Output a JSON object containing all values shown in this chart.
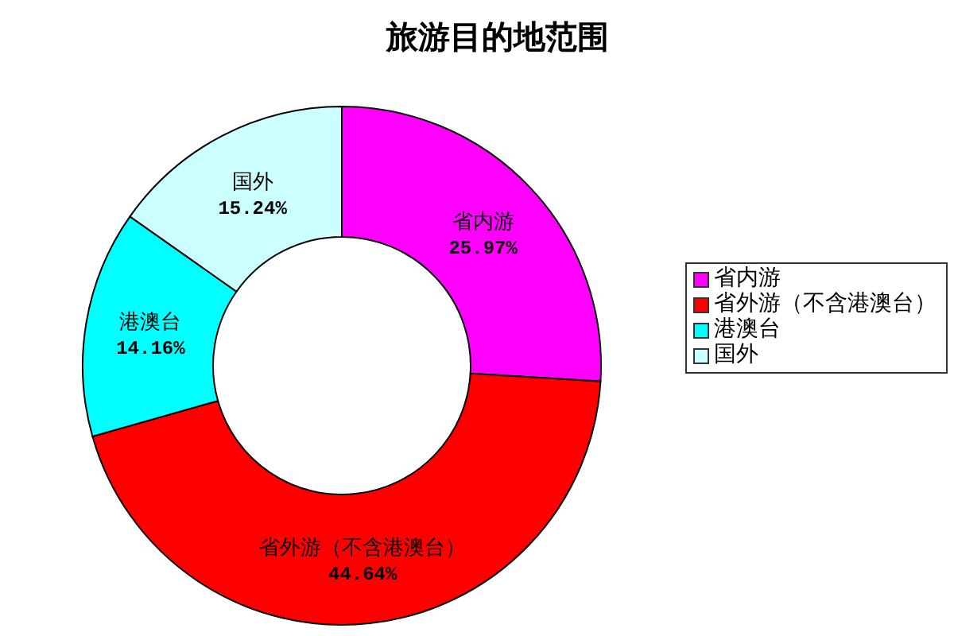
{
  "chart_data": {
    "type": "donut",
    "title": "旅游目的地范围",
    "categories": [
      "省内游",
      "省外游（不含港澳台）",
      "港澳台",
      "国外"
    ],
    "values": [
      25.97,
      44.64,
      14.16,
      15.24
    ],
    "value_labels": [
      "25.97%",
      "44.64%",
      "14.16%",
      "15.24%"
    ],
    "colors": [
      "#ff00ff",
      "#ff0000",
      "#00ffff",
      "#ccffff"
    ],
    "legend": "right"
  }
}
